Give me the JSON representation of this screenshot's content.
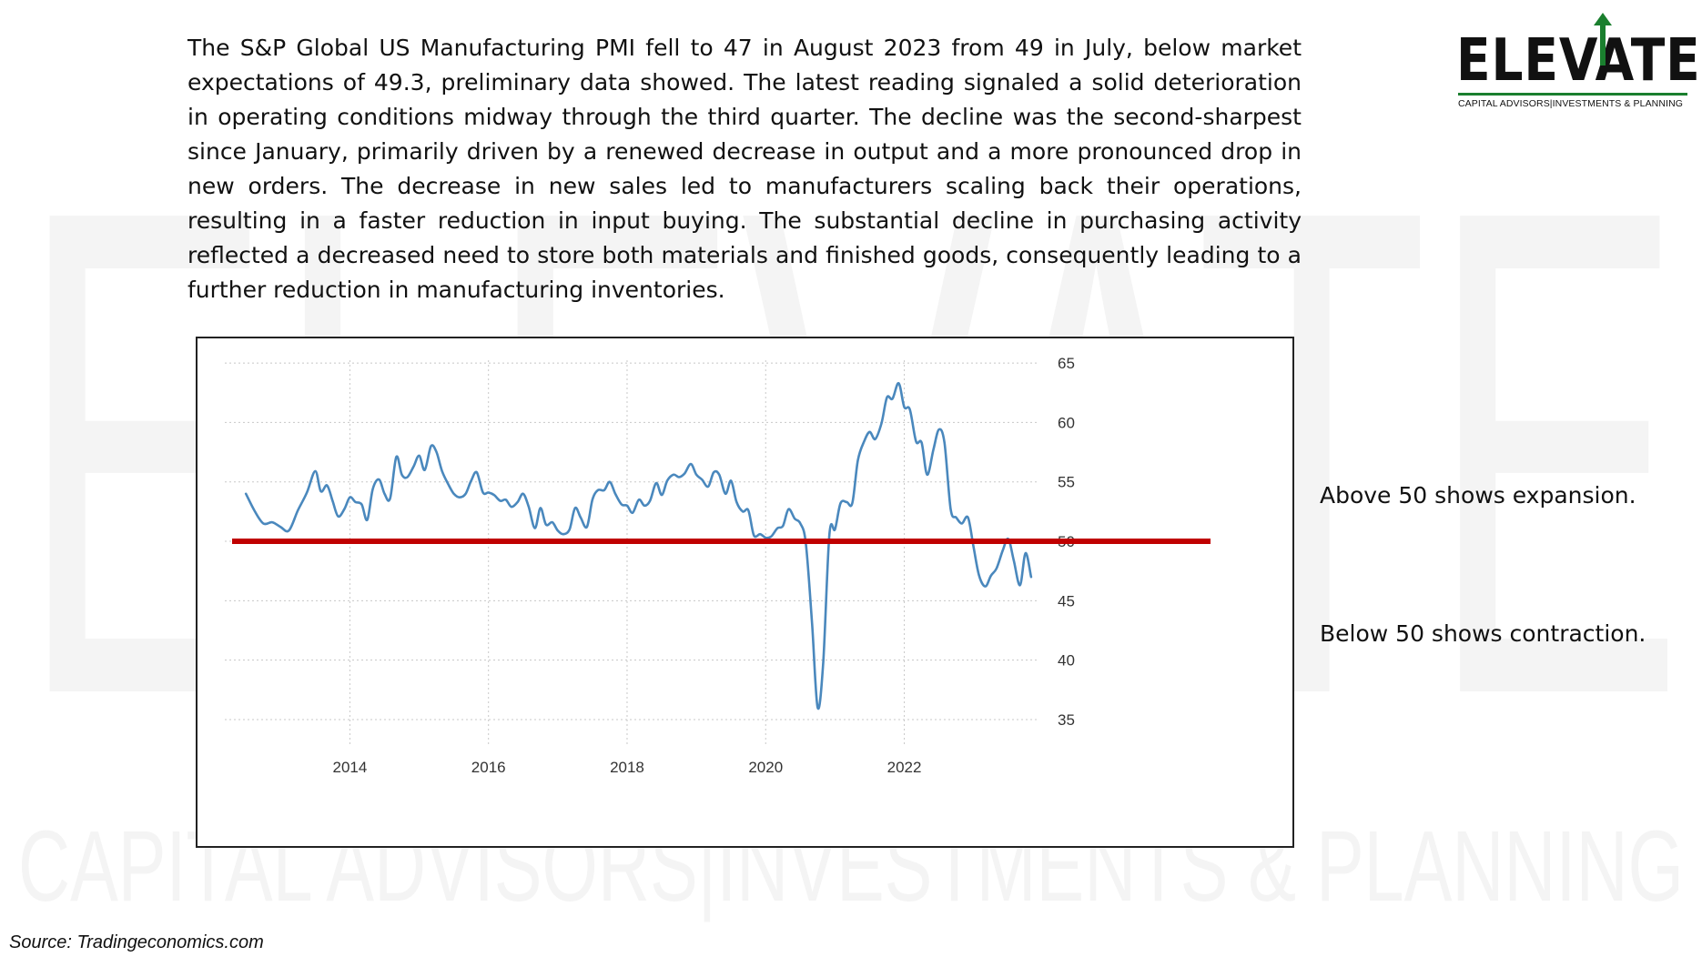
{
  "watermark": {
    "word": "ELEVATE",
    "tagline": "CAPITAL ADVISORS|INVESTMENTS & PLANNING"
  },
  "logo": {
    "word": "ELEVATE",
    "tagline": "CAPITAL ADVISORS|INVESTMENTS & PLANNING",
    "accent_color": "#1a7f2e"
  },
  "paragraph": "The S&P Global US Manufacturing PMI fell to 47 in August 2023 from 49 in July, below market expectations of 49.3, preliminary data showed. The latest reading signaled a solid deterioration in operating conditions midway through the third quarter. The decline was the second-sharpest since January, primarily driven by a renewed decrease in output and a more pronounced drop in new orders. The decrease in new sales led to manufacturers scaling back their operations, resulting in a faster reduction in input buying. The substantial decline in purchasing activity reflected a decreased need to store both materials and finished goods, consequently leading to a further reduction in manufacturing inventories.",
  "notes": {
    "above": "Above 50 shows expansion.",
    "below": "Below 50 shows contraction."
  },
  "source": "Source: Tradingeconomics.com",
  "chart_data": {
    "type": "line",
    "title": "",
    "xlabel": "",
    "ylabel": "",
    "x_ticks": [
      {
        "label": "2014",
        "value": 2014.0
      },
      {
        "label": "2016",
        "value": 2016.0
      },
      {
        "label": "2018",
        "value": 2018.0
      },
      {
        "label": "2020",
        "value": 2020.0
      },
      {
        "label": "2022",
        "value": 2022.0
      }
    ],
    "y_ticks": [
      35,
      40,
      45,
      50,
      55,
      60,
      65
    ],
    "xlim": [
      2012.3,
      2023.95
    ],
    "ylim": [
      34,
      66
    ],
    "y_axis_side": "right",
    "grid": true,
    "line_color": "#4a88bd",
    "reference_line": {
      "y": 50,
      "color": "#c00000"
    },
    "series": [
      {
        "points": [
          [
            2012.5,
            54.0
          ],
          [
            2012.62,
            52.6
          ],
          [
            2012.75,
            51.5
          ],
          [
            2012.88,
            51.6
          ],
          [
            2013.0,
            51.2
          ],
          [
            2013.12,
            50.9
          ],
          [
            2013.25,
            52.6
          ],
          [
            2013.38,
            54.1
          ],
          [
            2013.5,
            55.9
          ],
          [
            2013.58,
            54.2
          ],
          [
            2013.67,
            54.7
          ],
          [
            2013.75,
            53.4
          ],
          [
            2013.83,
            52.1
          ],
          [
            2013.92,
            52.7
          ],
          [
            2014.0,
            53.7
          ],
          [
            2014.08,
            53.3
          ],
          [
            2014.17,
            53.1
          ],
          [
            2014.25,
            51.8
          ],
          [
            2014.33,
            54.4
          ],
          [
            2014.42,
            55.2
          ],
          [
            2014.5,
            54.0
          ],
          [
            2014.58,
            53.6
          ],
          [
            2014.67,
            57.1
          ],
          [
            2014.75,
            55.6
          ],
          [
            2014.83,
            55.4
          ],
          [
            2014.92,
            56.3
          ],
          [
            2015.0,
            57.2
          ],
          [
            2015.08,
            56.0
          ],
          [
            2015.17,
            58.0
          ],
          [
            2015.25,
            57.5
          ],
          [
            2015.33,
            55.9
          ],
          [
            2015.42,
            54.8
          ],
          [
            2015.5,
            54.0
          ],
          [
            2015.58,
            53.7
          ],
          [
            2015.67,
            54.0
          ],
          [
            2015.75,
            55.1
          ],
          [
            2015.83,
            55.8
          ],
          [
            2015.92,
            54.1
          ],
          [
            2016.0,
            54.1
          ],
          [
            2016.08,
            53.9
          ],
          [
            2016.17,
            53.4
          ],
          [
            2016.25,
            53.5
          ],
          [
            2016.33,
            52.9
          ],
          [
            2016.42,
            53.3
          ],
          [
            2016.5,
            54.0
          ],
          [
            2016.58,
            52.9
          ],
          [
            2016.67,
            51.1
          ],
          [
            2016.75,
            52.8
          ],
          [
            2016.83,
            51.4
          ],
          [
            2016.92,
            51.6
          ],
          [
            2017.0,
            50.9
          ],
          [
            2017.08,
            50.6
          ],
          [
            2017.17,
            51.0
          ],
          [
            2017.25,
            52.8
          ],
          [
            2017.33,
            52.0
          ],
          [
            2017.42,
            51.2
          ],
          [
            2017.5,
            53.5
          ],
          [
            2017.58,
            54.3
          ],
          [
            2017.67,
            54.3
          ],
          [
            2017.75,
            55.0
          ],
          [
            2017.83,
            54.0
          ],
          [
            2017.92,
            53.1
          ],
          [
            2018.0,
            53.0
          ],
          [
            2018.08,
            52.4
          ],
          [
            2018.17,
            53.5
          ],
          [
            2018.25,
            53.0
          ],
          [
            2018.33,
            53.4
          ],
          [
            2018.42,
            54.9
          ],
          [
            2018.5,
            53.9
          ],
          [
            2018.58,
            55.1
          ],
          [
            2018.67,
            55.6
          ],
          [
            2018.75,
            55.4
          ],
          [
            2018.83,
            55.7
          ],
          [
            2018.92,
            56.5
          ],
          [
            2019.0,
            55.6
          ],
          [
            2019.08,
            55.2
          ],
          [
            2019.17,
            54.6
          ],
          [
            2019.25,
            55.8
          ],
          [
            2019.33,
            55.6
          ],
          [
            2019.42,
            54.0
          ],
          [
            2019.5,
            55.1
          ],
          [
            2019.58,
            53.3
          ],
          [
            2019.67,
            52.5
          ],
          [
            2019.75,
            52.6
          ],
          [
            2019.83,
            50.5
          ],
          [
            2019.92,
            50.6
          ],
          [
            2020.0,
            50.3
          ],
          [
            2020.08,
            50.4
          ],
          [
            2020.17,
            51.1
          ],
          [
            2020.25,
            51.3
          ],
          [
            2020.33,
            52.7
          ],
          [
            2020.42,
            51.9
          ],
          [
            2020.5,
            51.5
          ],
          [
            2020.58,
            49.8
          ],
          [
            2020.67,
            43.0
          ],
          [
            2020.75,
            36.0
          ],
          [
            2020.83,
            39.8
          ],
          [
            2020.92,
            50.6
          ],
          [
            2021.0,
            51.0
          ],
          [
            2021.08,
            53.2
          ],
          [
            2021.17,
            53.3
          ],
          [
            2021.25,
            53.2
          ],
          [
            2021.33,
            56.8
          ],
          [
            2021.42,
            58.4
          ],
          [
            2021.5,
            59.2
          ],
          [
            2021.58,
            58.6
          ],
          [
            2021.67,
            59.9
          ],
          [
            2021.75,
            62.1
          ],
          [
            2021.83,
            62.0
          ],
          [
            2021.92,
            63.3
          ],
          [
            2022.0,
            61.3
          ],
          [
            2022.08,
            61.1
          ],
          [
            2022.17,
            58.4
          ],
          [
            2022.25,
            58.3
          ],
          [
            2022.33,
            55.6
          ],
          [
            2022.42,
            57.7
          ],
          [
            2022.5,
            59.4
          ],
          [
            2022.58,
            58.3
          ],
          [
            2022.67,
            52.7
          ],
          [
            2022.75,
            52.0
          ],
          [
            2022.83,
            51.5
          ],
          [
            2022.92,
            52.0
          ],
          [
            2023.0,
            49.5
          ],
          [
            2023.08,
            47.1
          ],
          [
            2023.17,
            46.2
          ],
          [
            2023.25,
            47.1
          ],
          [
            2023.33,
            47.7
          ],
          [
            2023.42,
            49.2
          ],
          [
            2023.5,
            50.2
          ],
          [
            2023.58,
            48.4
          ],
          [
            2023.67,
            46.3
          ],
          [
            2023.75,
            49.0
          ],
          [
            2023.83,
            47.0
          ]
        ]
      }
    ]
  }
}
